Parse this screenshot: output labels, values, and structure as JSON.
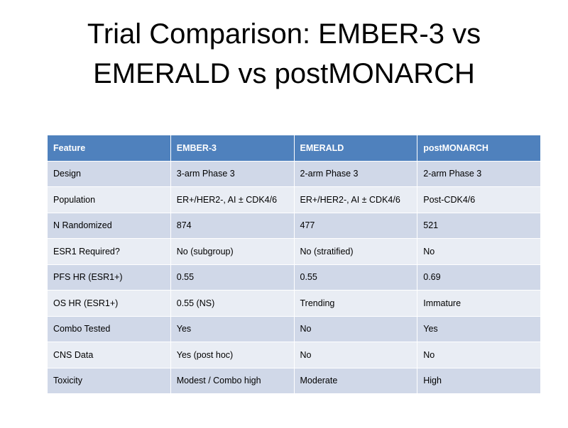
{
  "title": "Trial Comparison: EMBER-3 vs EMERALD vs postMONARCH",
  "table": {
    "header": [
      "Feature",
      "EMBER-3",
      "EMERALD",
      "postMONARCH"
    ],
    "rows": [
      [
        "Design",
        "3-arm Phase 3",
        "2-arm Phase 3",
        "2-arm Phase 3"
      ],
      [
        "Population",
        "ER+/HER2-, AI ± CDK4/6",
        "ER+/HER2-, AI ± CDK4/6",
        "Post-CDK4/6"
      ],
      [
        "N Randomized",
        "874",
        "477",
        "521"
      ],
      [
        "ESR1 Required?",
        "No (subgroup)",
        "No (stratified)",
        "No"
      ],
      [
        "PFS HR (ESR1+)",
        "0.55",
        "0.55",
        "0.69"
      ],
      [
        "OS HR (ESR1+)",
        "0.55 (NS)",
        "Trending",
        "Immature"
      ],
      [
        "Combo Tested",
        "Yes",
        "No",
        "Yes"
      ],
      [
        "CNS Data",
        "Yes (post hoc)",
        "No",
        "No"
      ],
      [
        "Toxicity",
        "Modest / Combo high",
        "Moderate",
        "High"
      ]
    ]
  }
}
